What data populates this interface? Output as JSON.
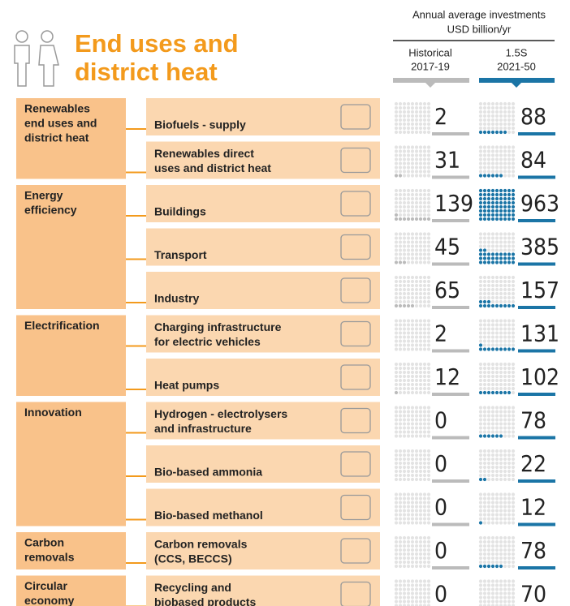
{
  "header": {
    "title": [
      "End uses and",
      "district heat"
    ],
    "measure": [
      "Annual average investments",
      "USD billion/yr"
    ],
    "columns": [
      {
        "name": "Historical",
        "period": "2017-19"
      },
      {
        "name": "1.5S",
        "period": "2021-50"
      }
    ]
  },
  "groups": [
    {
      "label": [
        "Renewables",
        "end uses and",
        "district heat"
      ],
      "rows": [
        {
          "label": [
            "Biofuels - supply"
          ],
          "historical": 2,
          "scenario": 88
        },
        {
          "label": [
            "Renewables direct",
            "uses and district heat"
          ],
          "historical": 31,
          "scenario": 84
        }
      ]
    },
    {
      "label": [
        "Energy",
        "efficiency"
      ],
      "rows": [
        {
          "label": [
            "Buildings"
          ],
          "historical": 139,
          "scenario": 963
        },
        {
          "label": [
            "Transport"
          ],
          "historical": 45,
          "scenario": 385
        },
        {
          "label": [
            "Industry"
          ],
          "historical": 65,
          "scenario": 157
        }
      ]
    },
    {
      "label": [
        "Electrification"
      ],
      "rows": [
        {
          "label": [
            "Charging infrastructure",
            "for electric vehicles"
          ],
          "historical": 2,
          "scenario": 131
        },
        {
          "label": [
            "Heat pumps"
          ],
          "historical": 12,
          "scenario": 102
        }
      ]
    },
    {
      "label": [
        "Innovation"
      ],
      "rows": [
        {
          "label": [
            "Hydrogen - electrolysers",
            "and infrastructure"
          ],
          "historical": 0,
          "scenario": 78
        },
        {
          "label": [
            "Bio-based ammonia"
          ],
          "historical": 0,
          "scenario": 22
        },
        {
          "label": [
            "Bio-based methanol"
          ],
          "historical": 0,
          "scenario": 12
        }
      ]
    },
    {
      "label": [
        "Carbon",
        "removals"
      ],
      "rows": [
        {
          "label": [
            "Carbon removals",
            "(CCS, BECCS)"
          ],
          "historical": 0,
          "scenario": 78
        }
      ]
    },
    {
      "label": [
        "Circular",
        "economy"
      ],
      "rows": [
        {
          "label": [
            "Recycling and",
            "biobased products"
          ],
          "historical": 0,
          "scenario": 70
        }
      ]
    }
  ]
}
